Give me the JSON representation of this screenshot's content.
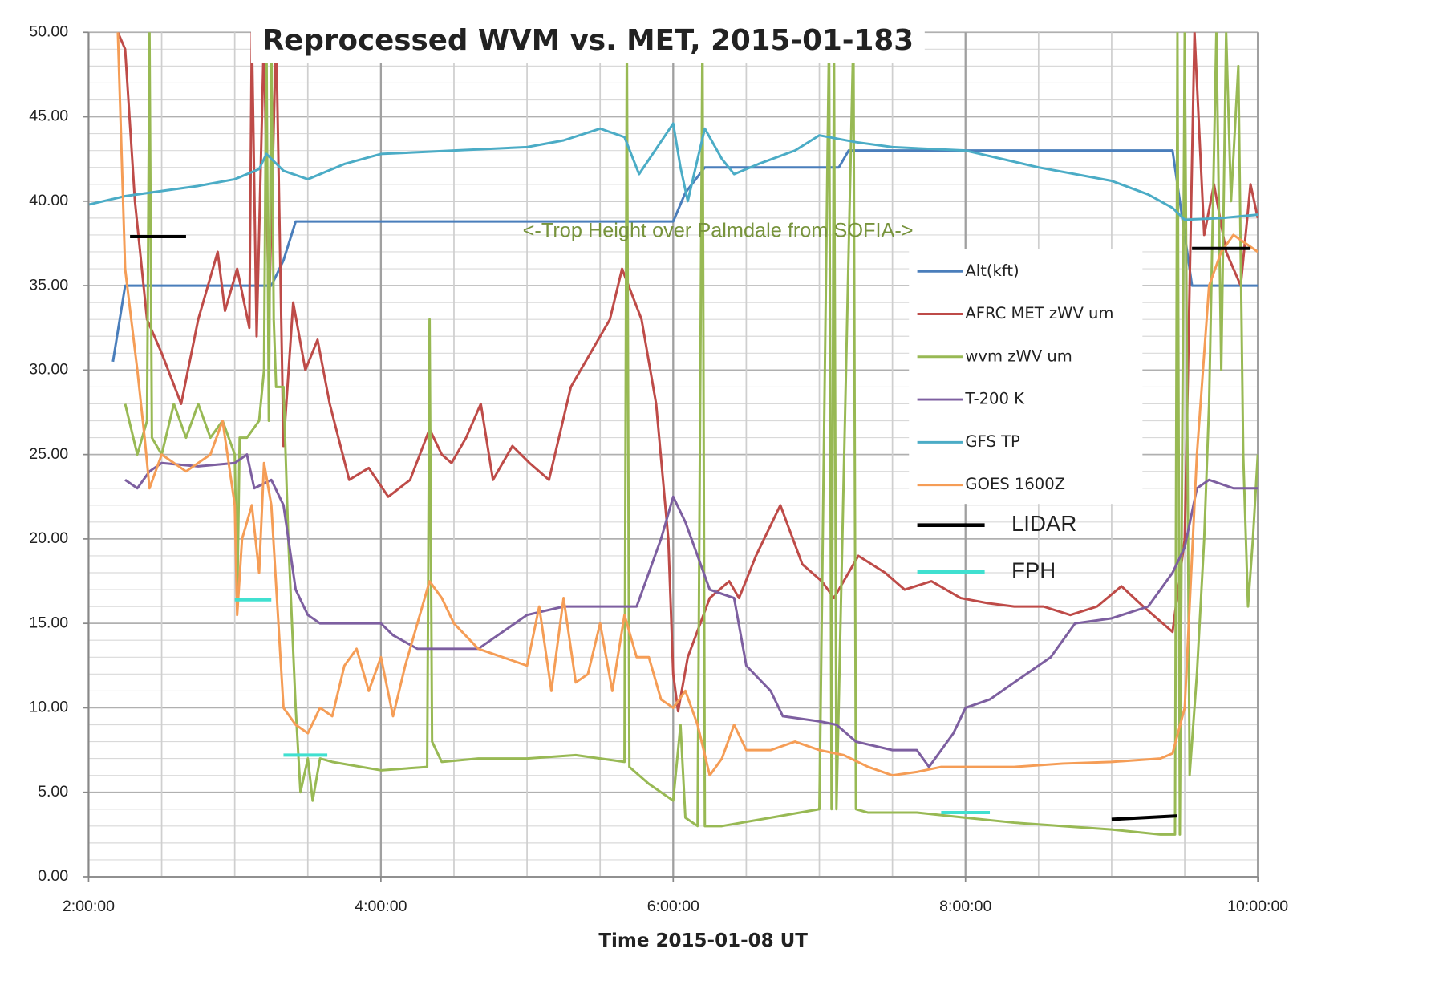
{
  "chart_data": {
    "type": "line",
    "title": "Reprocessed WVM vs. MET,  2015-01-183",
    "xlabel": "Time 2015-01-08 UT",
    "annotation": "<-Trop Height over Palmdale from SOFIA->",
    "xlim": [
      "2:00:00",
      "10:00:00"
    ],
    "xticks": [
      "2:00:00",
      "4:00:00",
      "6:00:00",
      "8:00:00",
      "10:00:00"
    ],
    "ylim": [
      0,
      50
    ],
    "yticks": [
      {
        "value": 0,
        "label": "0.00"
      },
      {
        "value": 5,
        "label": "5.00"
      },
      {
        "value": 10,
        "label": "10.00"
      },
      {
        "value": 15,
        "label": "15.00"
      },
      {
        "value": 20,
        "label": "20.00"
      },
      {
        "value": 25,
        "label": "25.00"
      },
      {
        "value": 30,
        "label": "30.00"
      },
      {
        "value": 35,
        "label": "35.00"
      },
      {
        "value": 40,
        "label": "40.00"
      },
      {
        "value": 45,
        "label": "45.00"
      },
      {
        "value": 50,
        "label": "50.00"
      }
    ],
    "grid": {
      "major": true,
      "minor_x_per_major": 4,
      "minor_y_per_major": 5
    },
    "legend": "right",
    "series": [
      {
        "name": "Alt(kft)",
        "color": "#4a7ebb",
        "x": [
          "2:10:00",
          "2:15:00",
          "3:15:00",
          "3:20:00",
          "3:25:00",
          "6:00:00",
          "6:05:00",
          "6:13:00",
          "7:08:00",
          "7:12:00",
          "9:25:00",
          "9:28:00",
          "9:33:00",
          "10:00:00"
        ],
        "values": [
          30.5,
          35,
          35,
          36.5,
          38.8,
          38.8,
          40.5,
          42,
          42,
          43,
          43,
          40,
          35,
          35
        ]
      },
      {
        "name": "AFRC MET zWV um",
        "color": "#be4b48",
        "x": [
          "2:12:00",
          "2:15:00",
          "2:19:00",
          "2:24:00",
          "2:30:00",
          "2:38:00",
          "2:45:00",
          "2:53:00",
          "2:56:00",
          "3:01:00",
          "3:06:00",
          "3:07:00",
          "3:09:00",
          "3:12:00",
          "3:14:00",
          "3:17:00",
          "3:20:00",
          "3:24:00",
          "3:29:00",
          "3:34:00",
          "3:39:00",
          "3:47:00",
          "3:55:00",
          "4:03:00",
          "4:12:00",
          "4:20:00",
          "4:25:00",
          "4:29:00",
          "4:35:00",
          "4:41:00",
          "4:46:00",
          "4:54:00",
          "5:01:00",
          "5:09:00",
          "5:18:00",
          "5:26:00",
          "5:34:00",
          "5:39:00",
          "5:47:00",
          "5:53:00",
          "5:58:00",
          "6:00:00",
          "6:02:00",
          "6:06:00",
          "6:15:00",
          "6:23:00",
          "6:27:00",
          "6:34:00",
          "6:44:00",
          "6:53:00",
          "7:01:00",
          "7:06:00",
          "7:16:00",
          "7:27:00",
          "7:35:00",
          "7:46:00",
          "7:58:00",
          "8:09:00",
          "8:20:00",
          "8:32:00",
          "8:43:00",
          "8:54:00",
          "9:04:00",
          "9:13:00",
          "9:25:00",
          "9:30:00",
          "9:34:00",
          "9:38:00",
          "9:42:00",
          "9:47:00",
          "9:53:00",
          "9:57:00",
          "10:00:00"
        ],
        "values": [
          50,
          49,
          40,
          33,
          31,
          28,
          33,
          37,
          33.5,
          36,
          32.5,
          50,
          32,
          50,
          33,
          50,
          25.5,
          34,
          30,
          31.8,
          28,
          23.5,
          24.2,
          22.5,
          23.5,
          26.5,
          25,
          24.5,
          26,
          28,
          23.5,
          25.5,
          24.5,
          23.5,
          29,
          31,
          33,
          36,
          33,
          28,
          20,
          12,
          9.8,
          13,
          16.5,
          17.5,
          16.5,
          19,
          22,
          18.5,
          17.5,
          16.5,
          19,
          18,
          17,
          17.5,
          16.5,
          16.2,
          16,
          16,
          15.5,
          16,
          17.2,
          16,
          14.5,
          20,
          50,
          38,
          41,
          37,
          35,
          41,
          39
        ]
      },
      {
        "name": "wvm zWV um",
        "color": "#98b954",
        "x": [
          "2:15:00",
          "2:20:00",
          "2:24:00",
          "2:25:00",
          "2:26:00",
          "2:30:00",
          "2:35:00",
          "2:40:00",
          "2:45:00",
          "2:50:00",
          "2:55:00",
          "3:00:00",
          "3:01:00",
          "3:02:00",
          "3:05:00",
          "3:10:00",
          "3:12:00",
          "3:13:00",
          "3:14:00",
          "3:15:00",
          "3:16:00",
          "3:17:00",
          "3:20:00",
          "3:22:00",
          "3:25:00",
          "3:27:00",
          "3:30:00",
          "3:32:00",
          "3:35:00",
          "3:40:00",
          "4:00:00",
          "4:19:00",
          "4:20:00",
          "4:21:00",
          "4:25:00",
          "4:40:00",
          "5:00:00",
          "5:20:00",
          "5:40:00",
          "5:41:00",
          "5:42:00",
          "5:50:00",
          "6:00:00",
          "6:03:00",
          "6:05:00",
          "6:10:00",
          "6:12:00",
          "6:13:00",
          "6:20:00",
          "6:40:00",
          "7:00:00",
          "7:04:00",
          "7:05:00",
          "7:06:00",
          "7:07:00",
          "7:14:00",
          "7:15:00",
          "7:20:00",
          "7:40:00",
          "8:00:00",
          "8:20:00",
          "8:40:00",
          "9:00:00",
          "9:20:00",
          "9:26:00",
          "9:27:00",
          "9:28:00",
          "9:30:00",
          "9:32:00",
          "9:35:00",
          "9:38:00",
          "9:40:00",
          "9:43:00",
          "9:45:00",
          "9:47:00",
          "9:49:00",
          "9:52:00",
          "9:54:00",
          "9:56:00",
          "9:58:00",
          "10:00:00"
        ],
        "values": [
          28,
          25,
          27,
          50,
          26,
          25,
          28,
          26,
          28,
          26,
          27,
          25,
          16,
          26,
          26,
          27,
          30,
          50,
          27,
          50,
          33,
          29,
          29,
          20,
          10,
          5,
          7,
          4.5,
          7,
          6.8,
          6.3,
          6.5,
          33,
          8,
          6.8,
          7,
          7,
          7.2,
          6.8,
          50,
          6.5,
          5.5,
          4.5,
          9,
          3.5,
          3,
          50,
          3,
          3,
          3.5,
          4,
          50,
          4,
          50,
          4,
          50,
          4,
          3.8,
          3.8,
          3.5,
          3.2,
          3,
          2.8,
          2.5,
          2.5,
          50,
          2.5,
          50,
          6,
          12,
          20,
          28,
          50,
          30,
          50,
          40,
          48,
          25,
          16,
          20,
          25
        ]
      },
      {
        "name": "T-200 K",
        "color": "#7d5fa0",
        "x": [
          "2:15:00",
          "2:20:00",
          "2:25:00",
          "2:30:00",
          "2:45:00",
          "3:00:00",
          "3:05:00",
          "3:08:00",
          "3:15:00",
          "3:20:00",
          "3:25:00",
          "3:30:00",
          "3:35:00",
          "4:00:00",
          "4:05:00",
          "4:15:00",
          "4:30:00",
          "4:40:00",
          "4:50:00",
          "5:00:00",
          "5:15:00",
          "5:30:00",
          "5:45:00",
          "5:50:00",
          "5:55:00",
          "6:00:00",
          "6:05:00",
          "6:10:00",
          "6:15:00",
          "6:25:00",
          "6:30:00",
          "6:40:00",
          "6:45:00",
          "7:00:00",
          "7:07:00",
          "7:15:00",
          "7:30:00",
          "7:40:00",
          "7:45:00",
          "7:55:00",
          "8:00:00",
          "8:10:00",
          "8:20:00",
          "8:35:00",
          "8:45:00",
          "9:00:00",
          "9:15:00",
          "9:25:00",
          "9:30:00",
          "9:35:00",
          "9:40:00",
          "9:50:00",
          "10:00:00"
        ],
        "values": [
          23.5,
          23,
          24,
          24.5,
          24.3,
          24.5,
          25,
          23,
          23.5,
          22,
          17,
          15.5,
          15,
          15,
          14.3,
          13.5,
          13.5,
          13.5,
          14.5,
          15.5,
          16,
          16,
          16,
          18,
          20,
          22.5,
          21,
          19,
          17,
          16.5,
          12.5,
          11,
          9.5,
          9.2,
          9,
          8,
          7.5,
          7.5,
          6.5,
          8.5,
          10,
          10.5,
          11.5,
          13,
          15,
          15.3,
          16,
          18,
          19.5,
          23,
          23.5,
          23,
          23
        ]
      },
      {
        "name": "GFS TP",
        "color": "#4bacc6",
        "x": [
          "2:00:00",
          "2:15:00",
          "2:30:00",
          "2:45:00",
          "3:00:00",
          "3:10:00",
          "3:13:00",
          "3:20:00",
          "3:30:00",
          "3:45:00",
          "4:00:00",
          "4:30:00",
          "5:00:00",
          "5:15:00",
          "5:30:00",
          "5:40:00",
          "5:46:00",
          "6:00:00",
          "6:03:00",
          "6:06:00",
          "6:10:00",
          "6:13:00",
          "6:20:00",
          "6:25:00",
          "6:35:00",
          "6:50:00",
          "7:00:00",
          "7:15:00",
          "7:30:00",
          "8:00:00",
          "8:30:00",
          "9:00:00",
          "9:15:00",
          "9:25:00",
          "9:30:00",
          "9:45:00",
          "10:00:00"
        ],
        "values": [
          39.8,
          40.3,
          40.6,
          40.9,
          41.3,
          41.9,
          42.8,
          41.8,
          41.3,
          42.2,
          42.8,
          43,
          43.2,
          43.6,
          44.3,
          43.8,
          41.6,
          44.6,
          42,
          40,
          42.5,
          44.3,
          42.5,
          41.6,
          42.2,
          43,
          43.9,
          43.5,
          43.2,
          43,
          42,
          41.2,
          40.4,
          39.6,
          38.9,
          39,
          39.2
        ]
      },
      {
        "name": "GOES 1600Z",
        "color": "#f59d56",
        "x": [
          "2:12:00",
          "2:15:00",
          "2:20:00",
          "2:23:00",
          "2:25:00",
          "2:30:00",
          "2:40:00",
          "2:50:00",
          "2:55:00",
          "3:00:00",
          "3:01:00",
          "3:03:00",
          "3:07:00",
          "3:10:00",
          "3:12:00",
          "3:15:00",
          "3:20:00",
          "3:25:00",
          "3:30:00",
          "3:35:00",
          "3:40:00",
          "3:45:00",
          "3:50:00",
          "3:55:00",
          "4:00:00",
          "4:05:00",
          "4:10:00",
          "4:15:00",
          "4:20:00",
          "4:25:00",
          "4:30:00",
          "4:40:00",
          "4:50:00",
          "5:00:00",
          "5:05:00",
          "5:10:00",
          "5:15:00",
          "5:20:00",
          "5:25:00",
          "5:30:00",
          "5:35:00",
          "5:40:00",
          "5:45:00",
          "5:50:00",
          "5:55:00",
          "6:00:00",
          "6:05:00",
          "6:10:00",
          "6:15:00",
          "6:20:00",
          "6:25:00",
          "6:30:00",
          "6:40:00",
          "6:50:00",
          "7:00:00",
          "7:10:00",
          "7:20:00",
          "7:30:00",
          "7:40:00",
          "7:50:00",
          "8:00:00",
          "8:20:00",
          "8:40:00",
          "9:00:00",
          "9:20:00",
          "9:25:00",
          "9:30:00",
          "9:35:00",
          "9:40:00",
          "9:45:00",
          "9:50:00",
          "9:55:00",
          "10:00:00"
        ],
        "values": [
          50,
          36,
          30,
          26,
          23,
          25,
          24,
          25,
          27,
          22,
          15.5,
          20,
          22,
          18,
          24.5,
          22,
          10,
          9,
          8.5,
          10,
          9.5,
          12.5,
          13.5,
          11,
          13,
          9.5,
          12.5,
          15,
          17.5,
          16.5,
          15,
          13.5,
          13,
          12.5,
          16,
          11,
          16.5,
          11.5,
          12,
          15,
          11,
          15.5,
          13,
          13,
          10.5,
          10,
          11,
          9,
          6,
          7,
          9,
          7.5,
          7.5,
          8,
          7.5,
          7.2,
          6.5,
          6,
          6.2,
          6.5,
          6.5,
          6.5,
          6.7,
          6.8,
          7,
          7.3,
          10,
          25,
          35,
          37,
          38,
          37.5,
          37
        ]
      },
      {
        "name": "LIDAR",
        "color": "#000000",
        "x": [
          "2:17:00",
          "2:40:00",
          "2:50:00",
          "9:00:00",
          "9:27:00",
          "9:30:00",
          "9:33:00",
          "9:57:00"
        ],
        "values": [
          37.9,
          37.9,
          null,
          3.4,
          3.6,
          null,
          37.2,
          37.2
        ]
      },
      {
        "name": "FPH",
        "color": "#40e0d0",
        "x": [
          "3:00:00",
          "3:15:00",
          "3:17:00",
          "3:20:00",
          "3:38:00",
          "3:45:00",
          "7:50:00",
          "8:10:00"
        ],
        "values": [
          16.4,
          16.4,
          null,
          7.2,
          7.2,
          null,
          3.8,
          3.8
        ]
      }
    ]
  }
}
